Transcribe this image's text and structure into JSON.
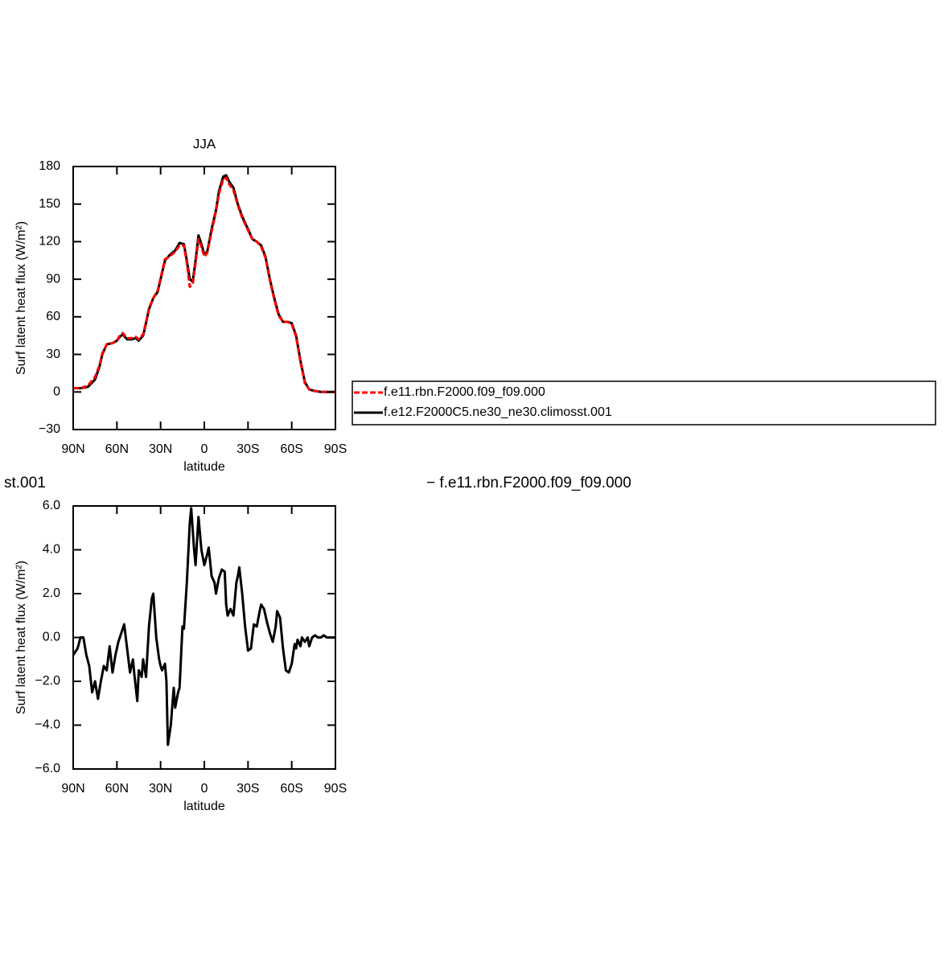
{
  "chart_data": [
    {
      "type": "line",
      "title": "JJA",
      "x_label": "latitude",
      "y_label": "Surf latent heat flux (W/m²)",
      "xlim": [
        90,
        -90
      ],
      "xticks": [
        {
          "value": 90,
          "label": "90N"
        },
        {
          "value": 60,
          "label": "60N"
        },
        {
          "value": 30,
          "label": "30N"
        },
        0,
        {
          "value": -30,
          "label": "30S"
        },
        {
          "value": -60,
          "label": "60S"
        },
        {
          "value": -90,
          "label": "90S"
        }
      ],
      "ylim": [
        -30,
        180
      ],
      "yticks": [
        {
          "value": -30,
          "label": "−30"
        },
        0,
        30,
        60,
        90,
        120,
        150,
        180
      ],
      "x": [
        90,
        85,
        80,
        75,
        72,
        70,
        67,
        63,
        60,
        58,
        56,
        53,
        50,
        47,
        45,
        42,
        40,
        38,
        35,
        32,
        30,
        27,
        24,
        20,
        17,
        14,
        12,
        10,
        8,
        6,
        4,
        2,
        0,
        -2,
        -5,
        -8,
        -10,
        -13,
        -15,
        -17,
        -20,
        -23,
        -26,
        -30,
        -33,
        -36,
        -39,
        -42,
        -45,
        -48,
        -51,
        -54,
        -57,
        -60,
        -63,
        -66,
        -69,
        -72,
        -75,
        -80,
        -85,
        -90
      ],
      "series": [
        {
          "name": "f.e11.rbn.F2000.f09_f09.000",
          "color": "#ff0000",
          "dashed": true,
          "values": [
            3,
            3,
            5,
            12,
            21,
            31,
            38,
            39,
            41,
            45,
            47,
            43,
            43,
            44,
            42,
            46,
            56,
            67,
            75,
            81,
            91,
            106,
            108,
            112,
            117,
            117,
            103,
            84,
            86,
            103,
            122,
            116,
            108,
            111,
            128,
            144,
            158,
            170,
            171,
            166,
            161,
            149,
            139,
            129,
            122,
            120,
            116,
            107,
            89,
            74,
            61,
            56,
            56,
            54,
            44,
            24,
            7,
            2,
            1,
            0,
            0,
            0
          ]
        },
        {
          "name": "f.e12.F2000C5.ne30_ne30.climosst.001",
          "color": "#000000",
          "dashed": false,
          "values": [
            3,
            3,
            4,
            10,
            20,
            30,
            38,
            39,
            41,
            44,
            46,
            42,
            42,
            43,
            41,
            45,
            55,
            66,
            75,
            80,
            90,
            105,
            109,
            113,
            119,
            118,
            105,
            90,
            88,
            105,
            125,
            118,
            110,
            112,
            130,
            145,
            160,
            172,
            173,
            168,
            163,
            150,
            140,
            130,
            122,
            120,
            117,
            108,
            90,
            75,
            62,
            56,
            56,
            55,
            45,
            25,
            8,
            2,
            1,
            0,
            0,
            0
          ]
        }
      ]
    },
    {
      "type": "line",
      "annotations": [
        "st.001",
        "− f.e11.rbn.F2000.f09_f09.000"
      ],
      "x_label": "latitude",
      "y_label": "Surf latent heat flux (W/m²)",
      "xlim": [
        90,
        -90
      ],
      "xticks": [
        {
          "value": 90,
          "label": "90N"
        },
        {
          "value": 60,
          "label": "60N"
        },
        {
          "value": 30,
          "label": "30N"
        },
        0,
        {
          "value": -30,
          "label": "30S"
        },
        {
          "value": -60,
          "label": "60S"
        },
        {
          "value": -90,
          "label": "90S"
        }
      ],
      "ylim": [
        -6,
        6
      ],
      "yticks": [
        {
          "value": -6,
          "label": "−6.0"
        },
        {
          "value": -4,
          "label": "−4.0"
        },
        {
          "value": -2,
          "label": "−2.0"
        },
        {
          "value": 0,
          "label": "0.0"
        },
        {
          "value": 2,
          "label": "2.0"
        },
        {
          "value": 4,
          "label": "4.0"
        },
        {
          "value": 6,
          "label": "6.0"
        }
      ],
      "x": [
        90,
        87,
        85,
        83,
        81,
        79,
        77,
        75,
        73,
        71,
        69,
        67,
        65,
        63,
        61,
        59,
        57,
        55,
        53,
        51,
        49,
        48,
        46,
        45,
        43,
        42,
        40,
        38,
        36,
        35,
        33,
        31,
        30,
        29,
        27,
        26,
        25,
        23,
        21,
        20,
        18,
        17,
        15,
        14,
        12,
        10,
        9,
        7,
        6,
        4,
        2,
        0,
        -2,
        -3,
        -5,
        -7,
        -8,
        -10,
        -12,
        -14,
        -15,
        -16,
        -18,
        -20,
        -22,
        -23,
        -24,
        -26,
        -28,
        -30,
        -32,
        -34,
        -36,
        -38,
        -39,
        -41,
        -43,
        -45,
        -47,
        -49,
        -50,
        -52,
        -54,
        -56,
        -58,
        -60,
        -62,
        -63,
        -64,
        -66,
        -67,
        -69,
        -71,
        -72,
        -74,
        -76,
        -78,
        -80,
        -82,
        -84,
        -86,
        -88,
        -90
      ],
      "series": [
        {
          "color": "#000000",
          "dashed": false,
          "values": [
            -0.8,
            -0.5,
            0,
            0,
            -0.8,
            -1.3,
            -2.5,
            -2,
            -2.8,
            -2,
            -1.3,
            -1.5,
            -0.4,
            -1.6,
            -0.8,
            -0.2,
            0.2,
            0.6,
            -0.5,
            -1.6,
            -1,
            -1.7,
            -2.9,
            -1.5,
            -1.8,
            -1,
            -1.8,
            0.5,
            1.8,
            2,
            0,
            -1,
            -1.3,
            -1.5,
            -1.2,
            -2,
            -4.9,
            -4,
            -2.3,
            -3.2,
            -2.5,
            -2.3,
            0.5,
            0.4,
            2.5,
            5.2,
            5.9,
            4,
            3.3,
            5.5,
            4,
            3.3,
            3.8,
            4.1,
            2.8,
            2.5,
            2,
            2.7,
            3.1,
            3,
            1.5,
            1,
            1.3,
            1,
            2.5,
            2.8,
            3.2,
            2,
            0.5,
            -0.6,
            -0.5,
            0.6,
            0.5,
            1.2,
            1.5,
            1.3,
            0.7,
            0.2,
            -0.2,
            0.5,
            1.2,
            0.9,
            -0.5,
            -1.5,
            -1.6,
            -1.2,
            -0.3,
            -0.5,
            -0.1,
            -0.4,
            0,
            -0.2,
            0,
            -0.4,
            0,
            0.1,
            0,
            0,
            0.1,
            0,
            0,
            0,
            0
          ]
        }
      ]
    }
  ]
}
